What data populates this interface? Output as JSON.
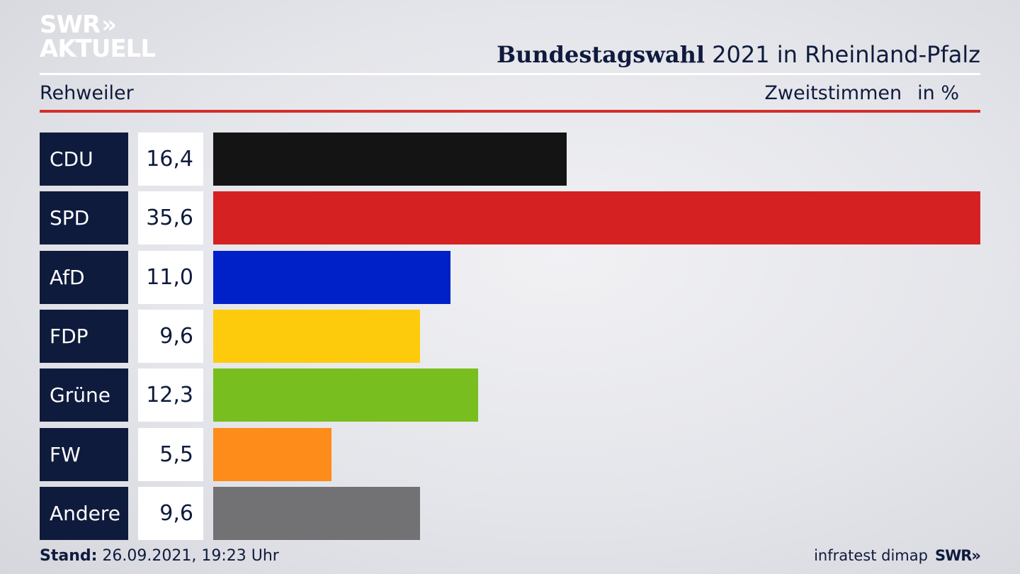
{
  "logo": {
    "line1": "SWR",
    "line1_chevrons": "»",
    "line2": "AKTUELL"
  },
  "header": {
    "title_bold": "Bundestagswahl",
    "title_rest": "2021 in Rheinland-Pfalz",
    "location": "Rehweiler",
    "measure": "Zweitstimmen",
    "unit": "in %"
  },
  "chart_data": {
    "type": "bar",
    "orientation": "horizontal",
    "categories": [
      "CDU",
      "SPD",
      "AfD",
      "FDP",
      "Grüne",
      "FW",
      "Andere"
    ],
    "values": [
      16.4,
      35.6,
      11.0,
      9.6,
      12.3,
      5.5,
      9.6
    ],
    "value_labels": [
      "16,4",
      "35,6",
      "11,0",
      "9,6",
      "12,3",
      "5,5",
      "9,6"
    ],
    "colors": [
      "#141414",
      "#d52121",
      "#0021c8",
      "#fdcb0b",
      "#78be1e",
      "#fd8c1a",
      "#727274"
    ],
    "xlim": [
      0,
      35.6
    ],
    "grid": false,
    "legend": "none"
  },
  "footer": {
    "stand_label": "Stand:",
    "stand_value": "26.09.2021, 19:23 Uhr",
    "source": "infratest dimap",
    "brand": "SWR»"
  }
}
